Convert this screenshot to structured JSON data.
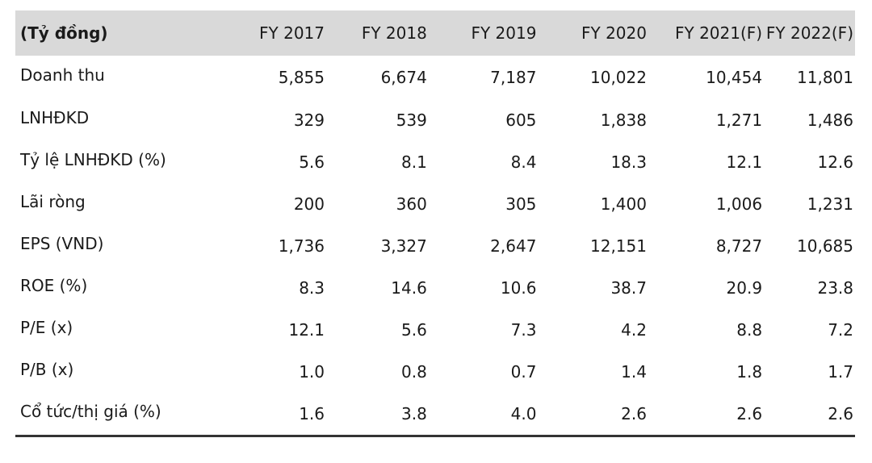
{
  "table": {
    "unit_label": "(Tỷ đồng)",
    "columns": [
      "FY 2017",
      "FY 2018",
      "FY 2019",
      "FY 2020",
      "FY 2021(F)",
      "FY 2022(F)"
    ],
    "rows": [
      {
        "label": "Doanh thu",
        "values": [
          "5,855",
          "6,674",
          "7,187",
          "10,022",
          "10,454",
          "11,801"
        ]
      },
      {
        "label": "LNHĐKD",
        "values": [
          "329",
          "539",
          "605",
          "1,838",
          "1,271",
          "1,486"
        ]
      },
      {
        "label": "Tỷ lệ LNHĐKD (%)",
        "values": [
          "5.6",
          "8.1",
          "8.4",
          "18.3",
          "12.1",
          "12.6"
        ]
      },
      {
        "label": "Lãi ròng",
        "values": [
          "200",
          "360",
          "305",
          "1,400",
          "1,006",
          "1,231"
        ]
      },
      {
        "label": "EPS (VND)",
        "values": [
          "1,736",
          "3,327",
          "2,647",
          "12,151",
          "8,727",
          "10,685"
        ]
      },
      {
        "label": "ROE (%)",
        "values": [
          "8.3",
          "14.6",
          "10.6",
          "38.7",
          "20.9",
          "23.8"
        ]
      },
      {
        "label": "P/E (x)",
        "values": [
          "12.1",
          "5.6",
          "7.3",
          "4.2",
          "8.8",
          "7.2"
        ]
      },
      {
        "label": "P/B (x)",
        "values": [
          "1.0",
          "0.8",
          "0.7",
          "1.4",
          "1.8",
          "1.7"
        ]
      },
      {
        "label": "Cổ tức/thị giá (%)",
        "values": [
          "1.6",
          "3.8",
          "4.0",
          "2.6",
          "2.6",
          "2.6"
        ]
      }
    ]
  },
  "colors": {
    "header_bg": "#d9d9d9",
    "text": "#1a1a1a",
    "bottom_rule": "#333333"
  }
}
